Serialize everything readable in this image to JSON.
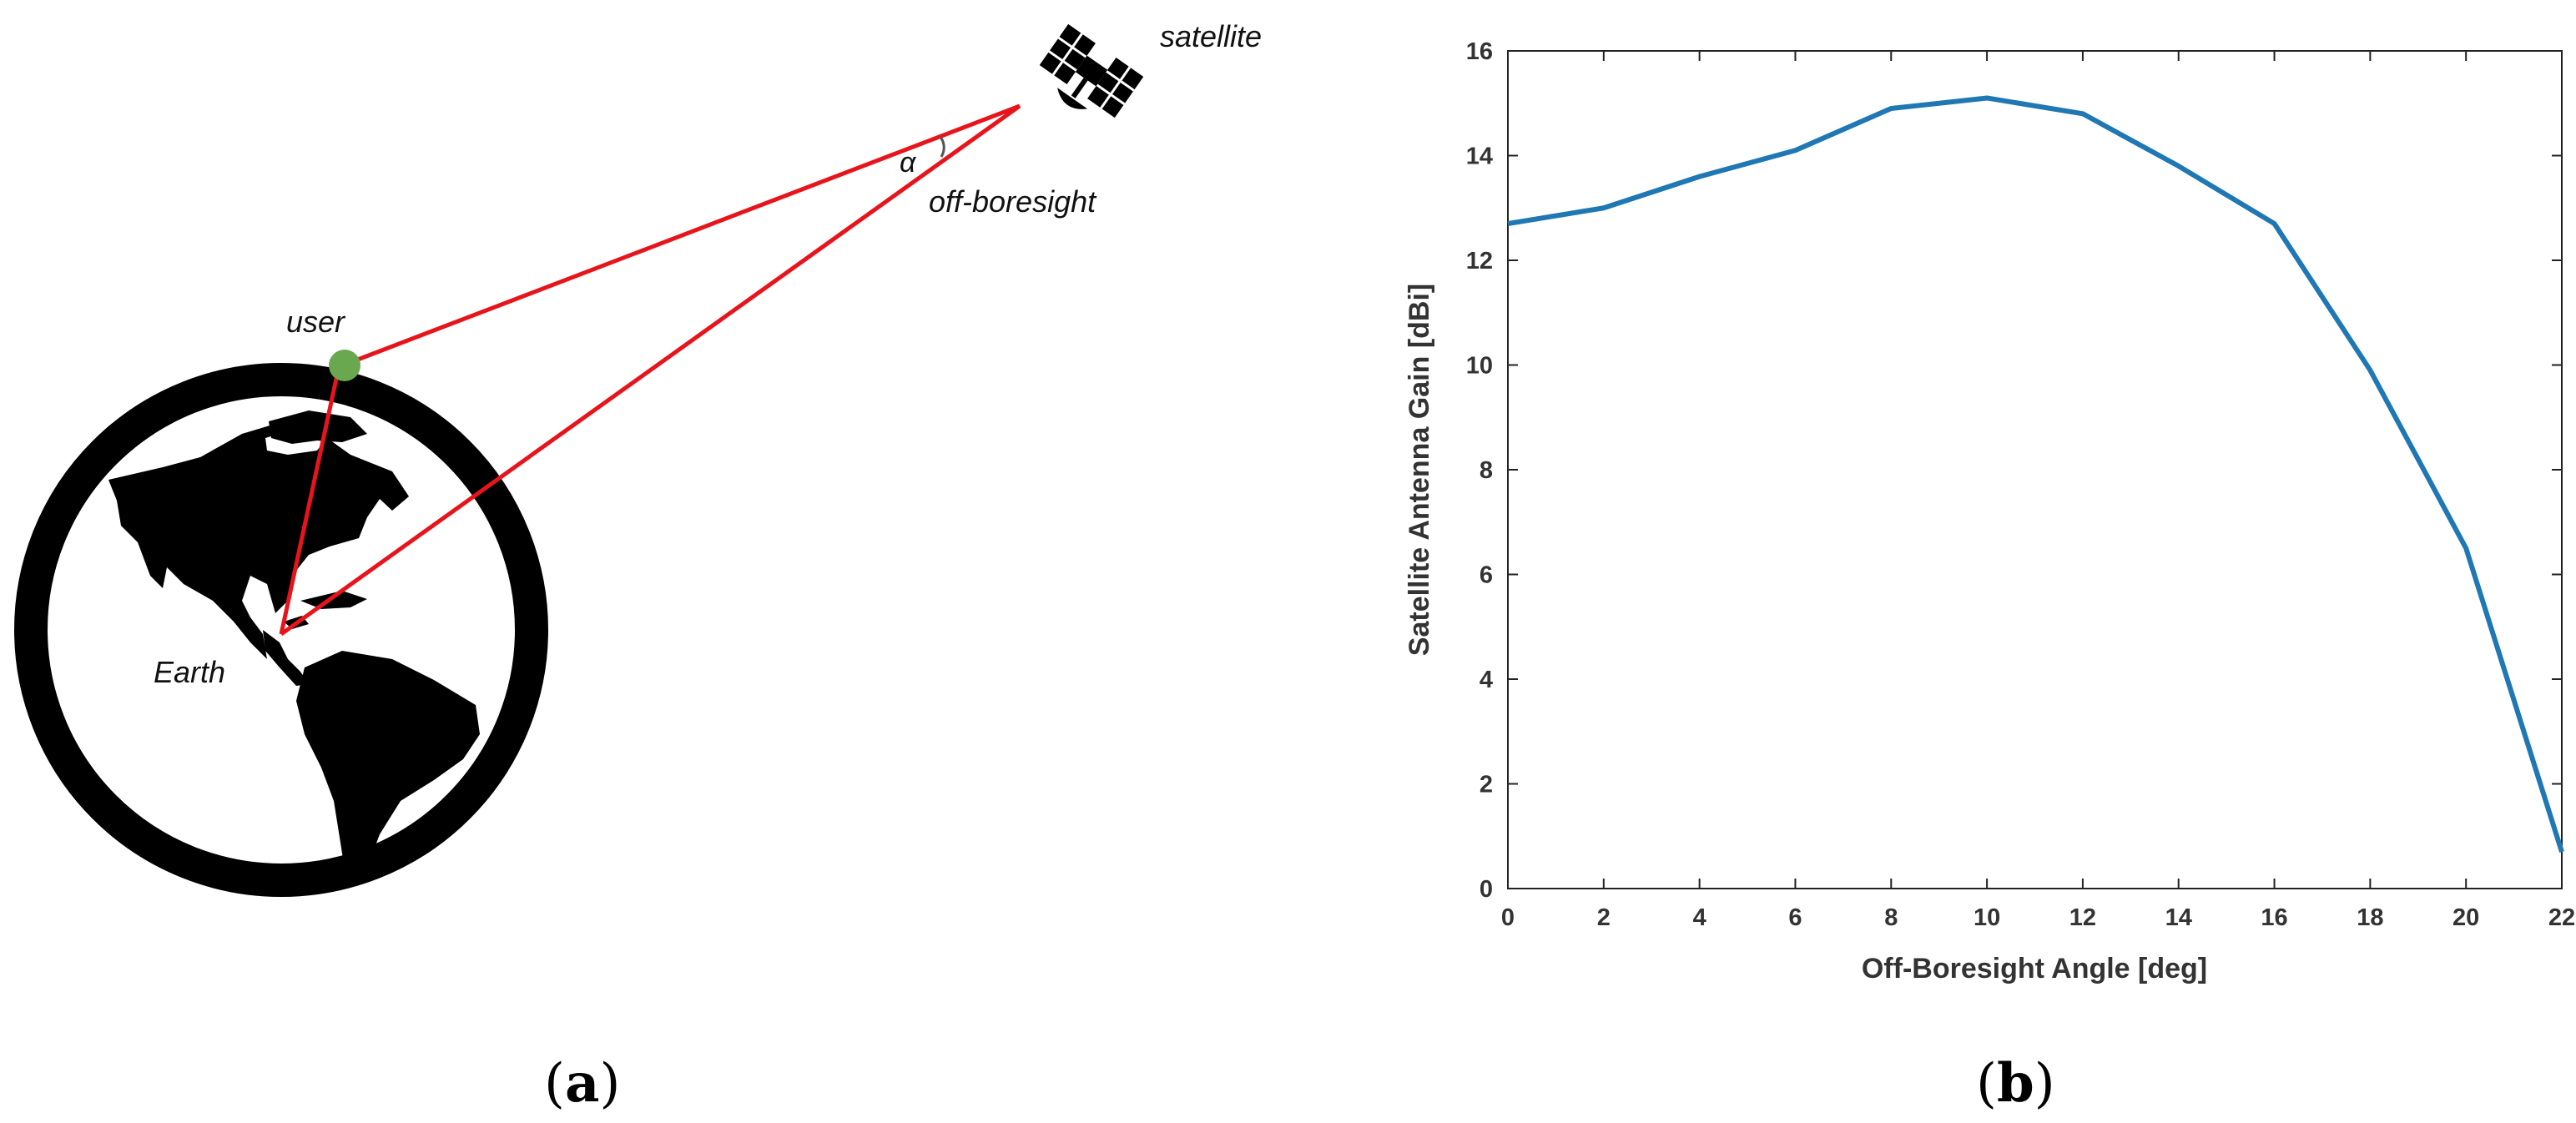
{
  "panel_a": {
    "labels": {
      "satellite": "satellite",
      "alpha": "α",
      "off_boresight": "off-boresight",
      "user": "user",
      "earth": "Earth"
    },
    "caption": {
      "open": "(",
      "letter": "a",
      "close": ")"
    },
    "colors": {
      "ray": "#e8141b",
      "user_dot": "#6aa84f",
      "earth": "#000000"
    },
    "icons": [
      "satellite-icon",
      "globe-icon"
    ]
  },
  "panel_b": {
    "caption": {
      "open": "(",
      "letter": "b",
      "close": ")"
    }
  },
  "chart_data": {
    "type": "line",
    "title": "",
    "xlabel": "Off-Boresight Angle [deg]",
    "ylabel": "Satellite Antenna Gain [dBi]",
    "xlim": [
      0,
      22
    ],
    "ylim": [
      0,
      16
    ],
    "xticks": [
      0,
      2,
      4,
      6,
      8,
      10,
      12,
      14,
      16,
      18,
      20,
      22
    ],
    "yticks": [
      0,
      2,
      4,
      6,
      8,
      10,
      12,
      14,
      16
    ],
    "grid": false,
    "legend": "none",
    "series": [
      {
        "color": "#1f77b4",
        "x": [
          0,
          2,
          4,
          6,
          8,
          10,
          12,
          14,
          16,
          18,
          20,
          22
        ],
        "y": [
          12.7,
          13.0,
          13.6,
          14.1,
          14.9,
          15.1,
          14.8,
          13.8,
          12.7,
          9.9,
          6.5,
          0.7
        ]
      }
    ]
  }
}
